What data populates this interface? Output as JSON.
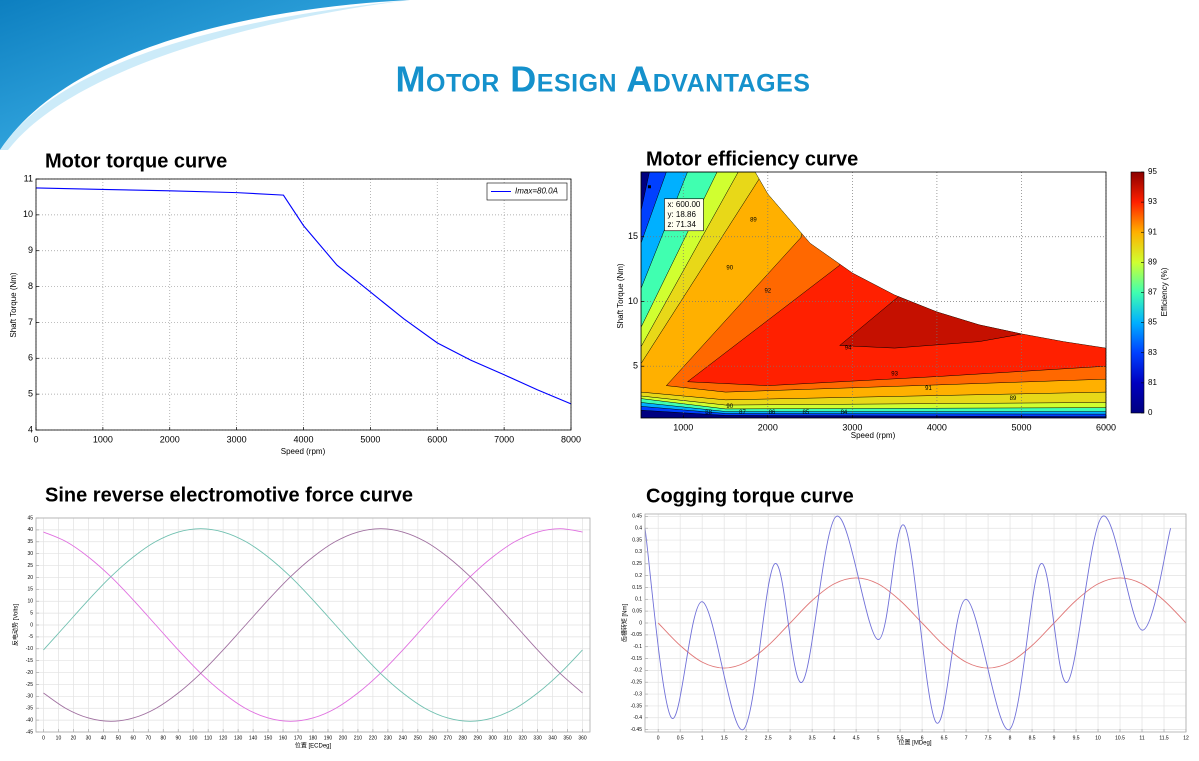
{
  "title": "Motor Design Advantages",
  "chart_data": [
    {
      "type": "line",
      "title": "Motor torque curve",
      "xlabel": "Speed (rpm)",
      "ylabel": "Shaft Torque (Nm)",
      "x": [
        0,
        1000,
        2000,
        3000,
        3700,
        4000,
        4500,
        5000,
        5500,
        6000,
        6500,
        7000,
        7500,
        8000
      ],
      "series": [
        {
          "name": "Imax=80.0A",
          "color": "#0000ff",
          "values": [
            10.75,
            10.71,
            10.67,
            10.62,
            10.55,
            9.7,
            8.6,
            7.85,
            7.1,
            6.43,
            5.95,
            5.54,
            5.12,
            4.73
          ]
        }
      ],
      "xlim": [
        0,
        8000
      ],
      "ylim": [
        4,
        11
      ],
      "xticks": [
        0,
        1000,
        2000,
        3000,
        4000,
        5000,
        6000,
        7000,
        8000
      ],
      "yticks": [
        4,
        5,
        6,
        7,
        8,
        9,
        10,
        11
      ],
      "grid": true,
      "legend": "upper right"
    },
    {
      "type": "contour",
      "title": "Motor efficiency curve",
      "xlabel": "Speed (rpm)",
      "ylabel": "Shaft Torque (Nm)",
      "xlim": [
        500,
        6000
      ],
      "ylim": [
        1,
        20
      ],
      "xticks": [
        1000,
        2000,
        3000,
        4000,
        5000,
        6000
      ],
      "yticks": [
        5,
        10,
        15
      ],
      "grid": true,
      "envelope": {
        "x": [
          500,
          1850,
          2000,
          2500,
          3000,
          3500,
          4000,
          4500,
          5000,
          5500,
          6000
        ],
        "y": [
          20,
          20,
          18.3,
          14.5,
          12.2,
          10.5,
          9.2,
          8.2,
          7.5,
          6.9,
          6.4
        ]
      },
      "levels": [
        {
          "level": 0,
          "x": [
            500,
            6000,
            6000,
            500
          ],
          "y": [
            1,
            1,
            20,
            20
          ]
        },
        {
          "level": 83,
          "x": [
            500,
            1500,
            6000,
            6000,
            600,
            500
          ],
          "y": [
            1.6,
            1.2,
            1.1,
            20,
            20,
            17
          ]
        },
        {
          "level": 85,
          "x": [
            500,
            1500,
            6000,
            6000,
            800,
            500
          ],
          "y": [
            1.9,
            1.35,
            1.3,
            20,
            20,
            14.5
          ]
        },
        {
          "level": 87,
          "x": [
            500,
            1500,
            6000,
            6000,
            1050,
            500
          ],
          "y": [
            2.2,
            1.5,
            1.5,
            20,
            20,
            11
          ]
        },
        {
          "level": 89,
          "x": [
            500,
            1500,
            6000,
            6000,
            1400,
            500
          ],
          "y": [
            2.5,
            1.7,
            1.8,
            20,
            20,
            8
          ]
        },
        {
          "level": 90,
          "x": [
            500,
            1500,
            6000,
            6000,
            1650,
            500
          ],
          "y": [
            2.7,
            2.0,
            2.2,
            20,
            20,
            6.5
          ]
        },
        {
          "level": 91,
          "x": [
            500,
            1500,
            6000,
            6000,
            1950,
            500
          ],
          "y": [
            3.0,
            2.4,
            3.0,
            20,
            20,
            5.2
          ]
        },
        {
          "level": 92,
          "x": [
            800,
            1500,
            6000,
            6000,
            2450,
            2400
          ],
          "y": [
            3.5,
            3.0,
            4.0,
            20,
            20,
            15
          ]
        },
        {
          "level": 93,
          "x": [
            1050,
            2000,
            4000,
            6000,
            6000,
            2900,
            2850
          ],
          "y": [
            3.8,
            3.5,
            4.2,
            5.0,
            20,
            20,
            12.8
          ]
        },
        {
          "level": 94,
          "x": [
            2850,
            3500,
            4500,
            5100,
            5100,
            3600,
            3550
          ],
          "y": [
            6.6,
            6.4,
            6.9,
            7.6,
            20,
            20,
            10.4
          ]
        }
      ],
      "contour_labels": [
        {
          "value": 89,
          "x": 1830,
          "y": 16.3
        },
        {
          "value": 90,
          "x": 1550,
          "y": 12.6
        },
        {
          "value": 92,
          "x": 2000,
          "y": 10.8
        },
        {
          "value": 94,
          "x": 2950,
          "y": 6.4
        },
        {
          "value": 93,
          "x": 3500,
          "y": 4.4
        },
        {
          "value": 91,
          "x": 3900,
          "y": 3.3
        },
        {
          "value": 89,
          "x": 4900,
          "y": 2.5
        },
        {
          "value": 90,
          "x": 1550,
          "y": 1.9
        },
        {
          "value": 88,
          "x": 1300,
          "y": 1.45
        },
        {
          "value": 87,
          "x": 1700,
          "y": 1.45
        },
        {
          "value": 86,
          "x": 2050,
          "y": 1.45
        },
        {
          "value": 85,
          "x": 2450,
          "y": 1.45
        },
        {
          "value": 84,
          "x": 2900,
          "y": 1.45
        }
      ],
      "datatip": {
        "x": 600,
        "y": 18.86,
        "lines": [
          "x: 600.00",
          "y: 18.86",
          "z: 71.34"
        ]
      },
      "colorbar": {
        "label": "Efficiency (%)",
        "ticks": [
          95,
          93,
          91,
          89,
          87,
          85,
          83,
          81,
          0
        ],
        "colors": [
          "#8b0000",
          "#ff2000",
          "#ffb000",
          "#d0ff30",
          "#40ffb0",
          "#00b0ff",
          "#0040ff",
          "#0000c0",
          "#000080"
        ]
      }
    },
    {
      "type": "line",
      "title": "Sine reverse electromotive force curve",
      "xlabel": "位置 [ECDeg]",
      "ylabel": "反电动势 [Volts]",
      "smooth": true,
      "x": [
        0,
        15,
        30,
        45,
        60,
        75,
        90,
        105,
        120,
        135,
        150,
        165,
        180,
        195,
        210,
        225,
        240,
        255,
        270,
        285,
        300,
        315,
        330,
        345,
        360
      ],
      "series": [
        {
          "color": "#e070e0",
          "values": [
            39.1,
            35.1,
            28.6,
            20.3,
            10.5,
            0,
            -10.5,
            -20.3,
            -28.6,
            -35.1,
            -39.1,
            -40.5,
            -39.1,
            -35.1,
            -28.6,
            -20.3,
            -10.5,
            0,
            10.5,
            20.3,
            28.6,
            35.1,
            39.1,
            40.5,
            39.1
          ]
        },
        {
          "color": "#70c0b0",
          "values": [
            -10.5,
            0,
            10.5,
            20.3,
            28.6,
            35.1,
            39.1,
            40.5,
            39.1,
            35.1,
            28.6,
            20.3,
            10.5,
            0,
            -10.5,
            -20.3,
            -28.6,
            -35.1,
            -39.1,
            -40.5,
            -39.1,
            -35.1,
            -28.6,
            -20.3,
            -10.5
          ]
        },
        {
          "color": "#a070a0",
          "values": [
            -28.6,
            -35.1,
            -39.1,
            -40.5,
            -39.1,
            -35.1,
            -28.6,
            -20.3,
            -10.5,
            0,
            10.5,
            20.3,
            28.6,
            35.1,
            39.1,
            40.5,
            39.1,
            35.1,
            28.6,
            20.3,
            10.5,
            0,
            -10.5,
            -20.3,
            -28.6
          ]
        }
      ],
      "xlim": [
        -5,
        365
      ],
      "ylim": [
        -45,
        45
      ],
      "xticks": [
        0,
        10,
        20,
        30,
        40,
        50,
        60,
        70,
        80,
        90,
        100,
        110,
        120,
        130,
        140,
        150,
        160,
        170,
        180,
        190,
        200,
        210,
        220,
        230,
        240,
        250,
        260,
        270,
        280,
        290,
        300,
        310,
        320,
        330,
        340,
        350,
        360
      ],
      "yticks": [
        -45,
        -40,
        -35,
        -30,
        -25,
        -20,
        -15,
        -10,
        -5,
        0,
        5,
        10,
        15,
        20,
        25,
        30,
        35,
        40,
        45
      ],
      "grid": true
    },
    {
      "type": "line",
      "title": "Cogging torque curve",
      "xlabel": "位置 [MDeg]",
      "ylabel": "齿槽转矩 [Nm]",
      "smooth": true,
      "series": [
        {
          "color": "#e07878",
          "x": [
            0,
            0.5,
            1,
            1.5,
            2,
            2.5,
            3,
            3.5,
            4,
            4.5,
            5,
            5.5,
            6,
            6.5,
            7,
            7.5,
            8,
            8.5,
            9,
            9.5,
            10,
            10.5,
            11,
            11.5,
            12
          ],
          "values": [
            0,
            -0.095,
            -0.165,
            -0.19,
            -0.165,
            -0.095,
            0,
            0.095,
            0.165,
            0.19,
            0.165,
            0.095,
            0,
            -0.095,
            -0.165,
            -0.19,
            -0.165,
            -0.095,
            0,
            0.095,
            0.165,
            0.19,
            0.165,
            0.095,
            0
          ]
        },
        {
          "color": "#7070d8",
          "x": [
            -0.3,
            0.3,
            1.0,
            1.93,
            2.65,
            3.27,
            4.05,
            5.0,
            5.6,
            6.32,
            7.0,
            7.98,
            8.7,
            9.3,
            10.1,
            11.0,
            11.65
          ],
          "values": [
            0.4,
            -0.4,
            0.09,
            -0.45,
            0.25,
            -0.25,
            0.45,
            -0.07,
            0.41,
            -0.42,
            0.1,
            -0.45,
            0.25,
            -0.25,
            0.45,
            -0.03,
            0.4
          ]
        }
      ],
      "xlim": [
        -0.3,
        12
      ],
      "ylim": [
        -0.46,
        0.46
      ],
      "xticks": [
        0,
        0.5,
        1,
        1.5,
        2,
        2.5,
        3,
        3.5,
        4,
        4.5,
        5,
        5.5,
        6,
        6.5,
        7,
        7.5,
        8,
        8.5,
        9,
        9.5,
        10,
        10.5,
        11,
        11.5,
        12
      ],
      "yticks": [
        -0.45,
        -0.4,
        -0.35,
        -0.3,
        -0.25,
        -0.2,
        -0.15,
        -0.1,
        -0.05,
        0,
        0.05,
        0.1,
        0.15,
        0.2,
        0.25,
        0.3,
        0.35,
        0.4,
        0.45
      ],
      "grid": true
    }
  ]
}
